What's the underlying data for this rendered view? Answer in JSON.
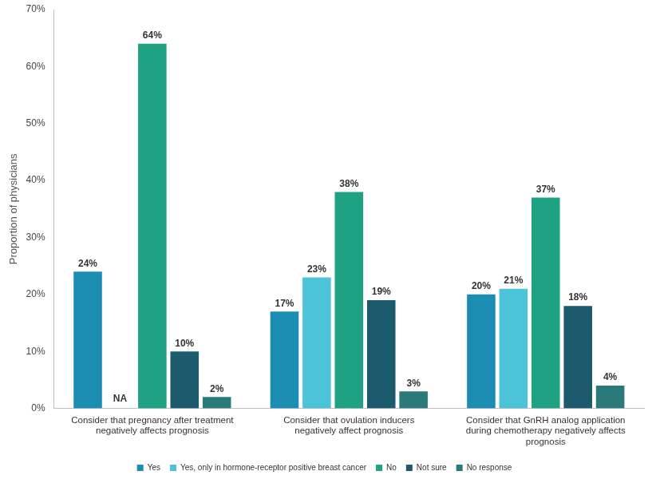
{
  "chart_data": {
    "type": "bar",
    "y_label": "Proportion of physicians",
    "categories": [
      "Consider that pregnancy after treatment negatively affects prognosis",
      "Consider that ovulation inducers negatively affect prognosis",
      "Consider that GnRH analog application during chemotherapy negatively affects prognosis"
    ],
    "series": [
      {
        "name": "Yes",
        "color": "#1b8db3",
        "values": [
          24,
          17,
          20
        ],
        "value_labels": [
          "24%",
          "17%",
          "20%"
        ]
      },
      {
        "name": "Yes, only in hormone-receptor positive breast cancer",
        "color": "#4cc3d9",
        "values": [
          null,
          23,
          21
        ],
        "value_labels": [
          "NA",
          "23%",
          "21%"
        ]
      },
      {
        "name": "No",
        "color": "#1fa282",
        "values": [
          64,
          38,
          37
        ],
        "value_labels": [
          "64%",
          "38%",
          "37%"
        ]
      },
      {
        "name": "Not sure",
        "color": "#1c5a6e",
        "values": [
          10,
          19,
          18
        ],
        "value_labels": [
          "10%",
          "19%",
          "18%"
        ]
      },
      {
        "name": "No response",
        "color": "#2a7a7a",
        "values": [
          2,
          3,
          4
        ],
        "value_labels": [
          "2%",
          "3%",
          "4%"
        ]
      }
    ],
    "ylim": [
      0,
      70
    ],
    "yticks": [
      {
        "value": 0,
        "label": "0%"
      },
      {
        "value": 10,
        "label": "10%"
      },
      {
        "value": 20,
        "label": "20%"
      },
      {
        "value": 30,
        "label": "30%"
      },
      {
        "value": 40,
        "label": "40%"
      },
      {
        "value": 50,
        "label": "50%"
      },
      {
        "value": 60,
        "label": "60%"
      },
      {
        "value": 70,
        "label": "70%"
      }
    ],
    "grid": false,
    "legend": "bottom",
    "data_labels": true
  }
}
